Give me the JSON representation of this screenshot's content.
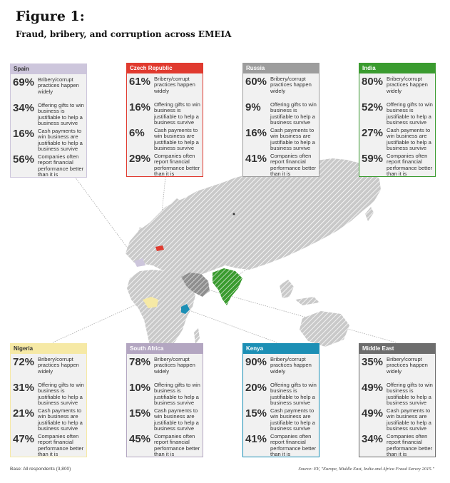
{
  "figure": {
    "title": "Figure 1:",
    "subtitle": "Fraud, bribery, and corruption across EMEIA"
  },
  "metric_labels": [
    "Bribery/corrupt practices happen widely",
    "Offering gifts to win business is justifiable to help a business survive",
    "Cash payments to win business are justifiable to help a business survive",
    "Companies often report financial performance better than it is"
  ],
  "cards": [
    {
      "id": "spain",
      "name": "Spain",
      "color": "#cdc6dc",
      "header_text_color": "#333333",
      "values": [
        "69%",
        "34%",
        "16%",
        "56%"
      ]
    },
    {
      "id": "czech-republic",
      "name": "Czech Republic",
      "color": "#e03a2f",
      "header_text_color": "#ffffff",
      "values": [
        "61%",
        "16%",
        "6%",
        "29%"
      ]
    },
    {
      "id": "russia",
      "name": "Russia",
      "color": "#9d9d9d",
      "header_text_color": "#ffffff",
      "values": [
        "60%",
        "9%",
        "16%",
        "41%"
      ]
    },
    {
      "id": "india",
      "name": "India",
      "color": "#3a9b2f",
      "header_text_color": "#ffffff",
      "values": [
        "80%",
        "52%",
        "27%",
        "59%"
      ]
    },
    {
      "id": "nigeria",
      "name": "Nigeria",
      "color": "#f6e9a5",
      "header_text_color": "#333333",
      "values": [
        "72%",
        "31%",
        "21%",
        "47%"
      ]
    },
    {
      "id": "south-africa",
      "name": "South Africa",
      "color": "#b3a6c1",
      "header_text_color": "#ffffff",
      "values": [
        "78%",
        "10%",
        "15%",
        "45%"
      ]
    },
    {
      "id": "kenya",
      "name": "Kenya",
      "color": "#1c8fb5",
      "header_text_color": "#ffffff",
      "values": [
        "90%",
        "20%",
        "15%",
        "41%"
      ]
    },
    {
      "id": "middle-east",
      "name": "Middle East",
      "color": "#6d6d6d",
      "header_text_color": "#ffffff",
      "values": [
        "35%",
        "49%",
        "49%",
        "34%"
      ]
    }
  ],
  "footer": {
    "base": "Base: All respondents (3,800)",
    "source": "Source:  EY, \"Europe, Middle East, India and Africa Fraud Survey 2015.\""
  }
}
